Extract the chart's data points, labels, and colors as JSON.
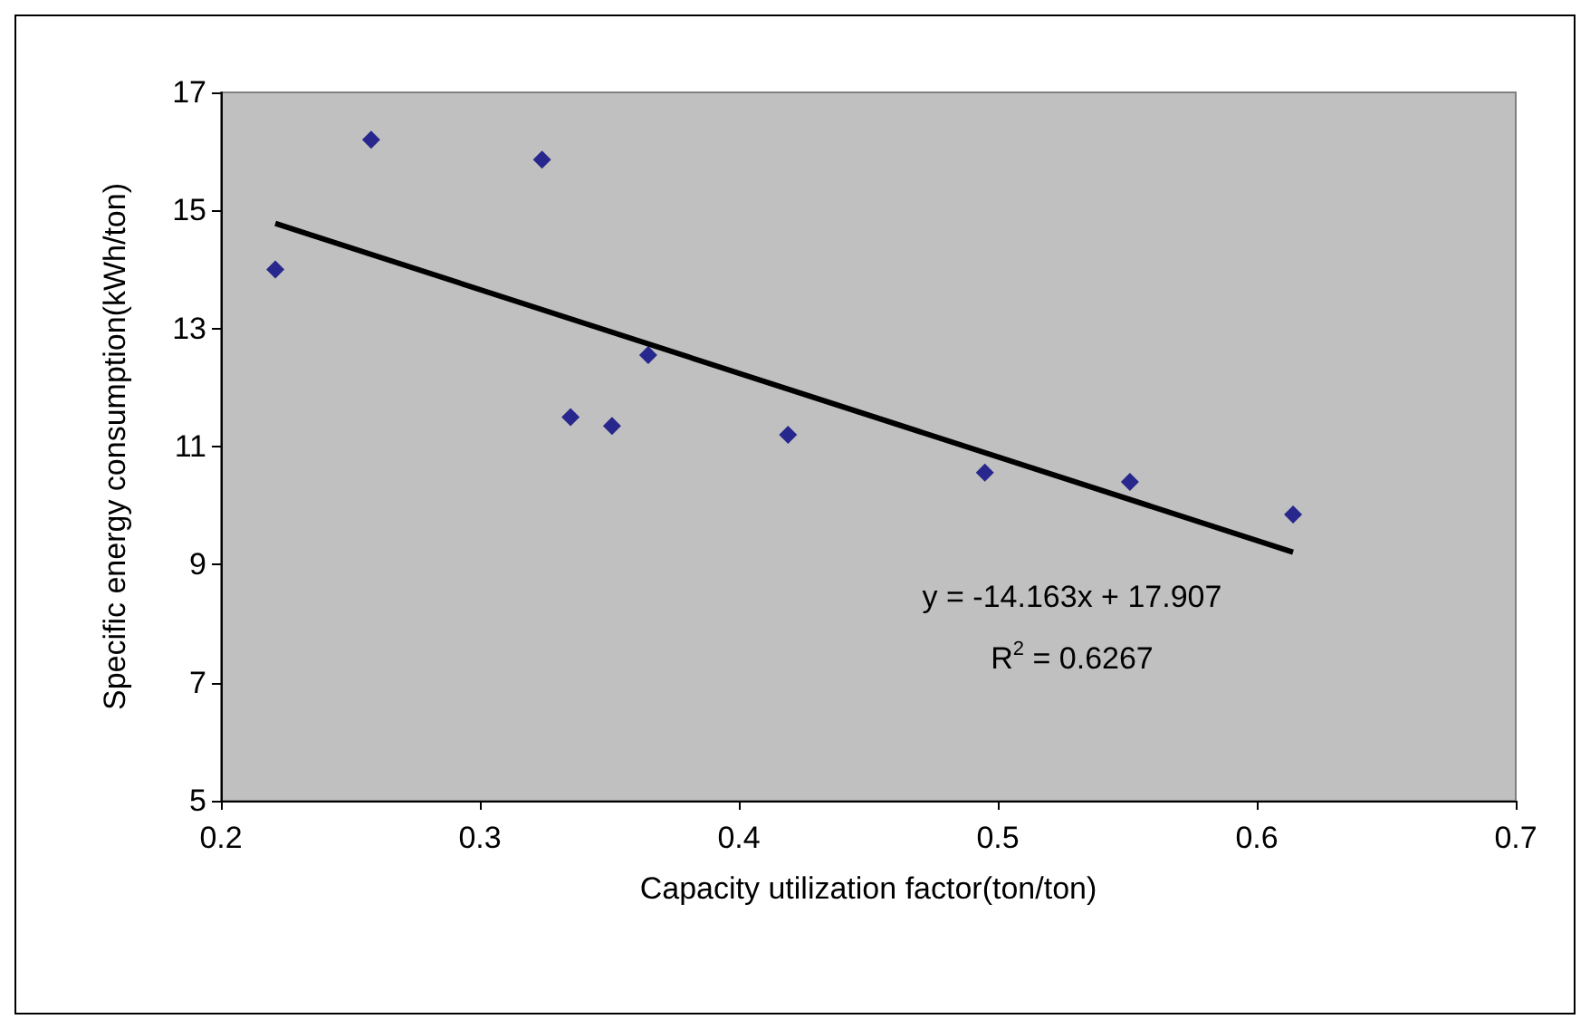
{
  "chart_data": {
    "type": "scatter",
    "xlabel": "Capacity utilization factor(ton/ton)",
    "ylabel": "Specific energy consumption(kWh/ton)",
    "series": [
      {
        "color": "#000080",
        "marker": "diamond",
        "x": [
          0.221,
          0.258,
          0.324,
          0.335,
          0.351,
          0.365,
          0.419,
          0.495,
          0.551,
          0.614
        ],
        "values": [
          14.0,
          16.2,
          15.86,
          11.5,
          11.35,
          12.55,
          11.2,
          10.56,
          10.4,
          9.85
        ]
      },
      {
        "type": "line",
        "color": "#000000",
        "marker": "none",
        "x": [
          0.221,
          0.614
        ],
        "values": [
          14.78,
          9.21
        ]
      }
    ],
    "annotations": [
      "y = -14.163x + 17.907",
      "R$^{2}$ = 0.6267"
    ],
    "xlim": [
      0.2,
      0.7
    ],
    "xticks": [
      0.2,
      0.3,
      0.4,
      0.5,
      0.6,
      0.7
    ],
    "ylim": [
      5,
      17
    ],
    "yticks": [
      5,
      7,
      9,
      11,
      13,
      15,
      17
    ],
    "grid": false
  }
}
